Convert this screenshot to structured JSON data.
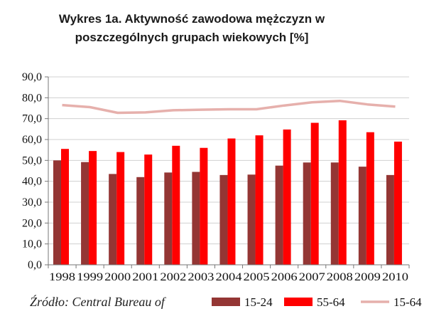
{
  "title_line1": "Wykres 1a. Aktywność zawodowa mężczyzn w",
  "title_line2": "poszczególnych grupach wiekowych [%]",
  "source": "Źródło: Central Bureau of",
  "chart_data": {
    "type": "bar",
    "categories": [
      "1998",
      "1999",
      "2000",
      "2001",
      "2002",
      "2003",
      "2004",
      "2005",
      "2006",
      "2007",
      "2008",
      "2009",
      "2010"
    ],
    "series": [
      {
        "name": "15-24",
        "kind": "bar",
        "color": "#943634",
        "values": [
          50.0,
          49.2,
          43.5,
          42.0,
          44.2,
          44.5,
          43.0,
          43.2,
          47.5,
          49.0,
          49.0,
          47.0,
          43.0
        ]
      },
      {
        "name": "55-64",
        "kind": "bar",
        "color": "#ff0000",
        "values": [
          55.5,
          54.5,
          54.0,
          52.8,
          57.0,
          56.0,
          60.5,
          62.0,
          64.8,
          68.0,
          69.2,
          63.5,
          59.0
        ]
      },
      {
        "name": "15-64",
        "kind": "line",
        "color": "#e6b0ac",
        "values": [
          76.5,
          75.5,
          72.8,
          73.0,
          74.0,
          74.3,
          74.5,
          74.5,
          76.3,
          77.8,
          78.5,
          76.8,
          75.8
        ]
      }
    ],
    "yticks": [
      "0,0",
      "10,0",
      "20,0",
      "30,0",
      "40,0",
      "50,0",
      "60,0",
      "70,0",
      "80,0",
      "90,0"
    ],
    "ylim": [
      0,
      90
    ],
    "grid": true,
    "legend_position": "bottom-right"
  }
}
